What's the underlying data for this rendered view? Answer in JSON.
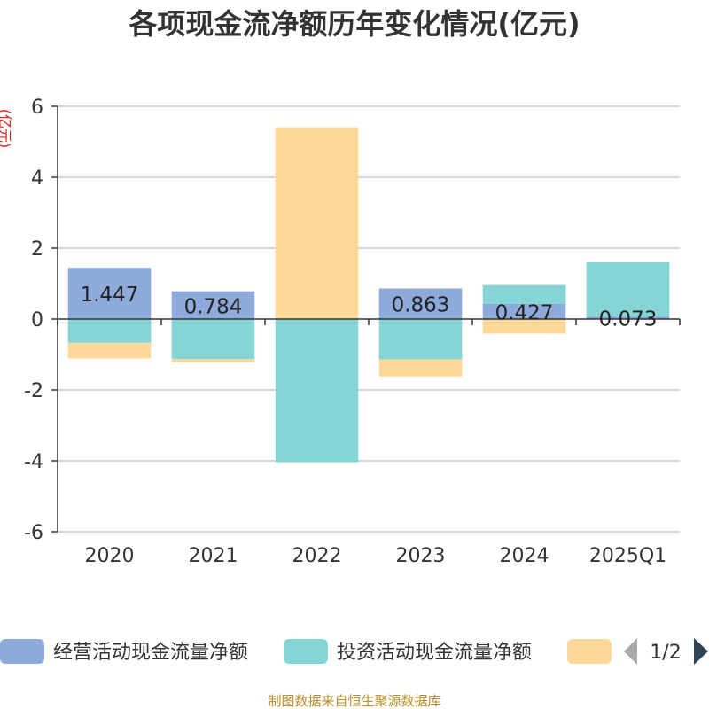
{
  "chart_data": {
    "type": "bar",
    "stacked": true,
    "title": "各项现金流净额历年变化情况(亿元)",
    "unit_label": "(亿元)",
    "categories": [
      "2020",
      "2021",
      "2022",
      "2023",
      "2024",
      "2025Q1"
    ],
    "yticks": [
      "6",
      "4",
      "2",
      "0",
      "-2",
      "-4",
      "-6"
    ],
    "ylim": [
      -6,
      6
    ],
    "series": [
      {
        "name": "经营活动现金流量净额",
        "color": "#8eaadb",
        "values": [
          1.447,
          0.784,
          -0.01,
          0.863,
          0.427,
          0.073
        ],
        "labels": [
          "1.447",
          "0.784",
          "",
          "0.863",
          "0.427",
          "0.073"
        ]
      },
      {
        "name": "投资活动现金流量净额",
        "color": "#85d4d6",
        "values": [
          -0.67,
          -1.13,
          -4.03,
          -1.14,
          0.53,
          1.53
        ]
      },
      {
        "name": "",
        "color": "#fdd899",
        "values": [
          -0.44,
          -0.09,
          5.41,
          -0.48,
          -0.41,
          0.0
        ]
      }
    ],
    "grid": true,
    "legend": "bottom"
  },
  "legend_pager": {
    "text": "1/2"
  },
  "source_note": "制图数据来自恒生聚源数据库"
}
